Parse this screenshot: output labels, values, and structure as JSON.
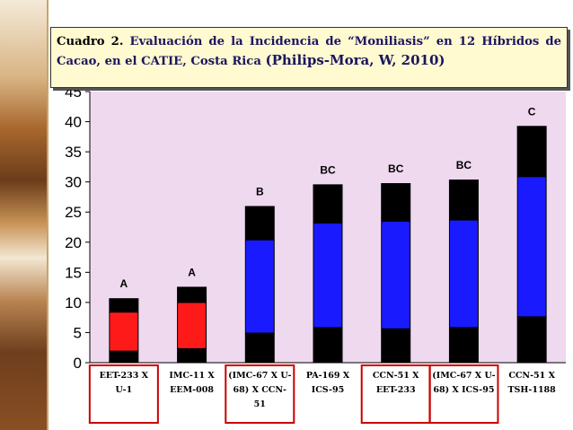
{
  "title": {
    "label": "Cuadro 2.",
    "text": "Evaluación de la Incidencia de “Moniliasis” en 12 Híbridos de Cacao, en el CATIE, Costa Rica",
    "citation": "(Philips-Mora, W, 2010)"
  },
  "colors": {
    "plot_bg": "#efd9ef",
    "stack_black": "#000000",
    "red": "#ff1a1a",
    "blue": "#1a1aff",
    "box_border": "#cc0000",
    "title_bg": "#fffad0",
    "title_text": "#1b1560"
  },
  "chart_data": {
    "type": "bar",
    "ylim": [
      0,
      45
    ],
    "yticks": [
      0,
      5,
      10,
      15,
      20,
      25,
      30,
      35,
      40,
      45
    ],
    "grid": false,
    "categories": [
      {
        "lines": [
          "EET-233 X",
          "U-1"
        ],
        "boxed": true
      },
      {
        "lines": [
          "IMC-11 X",
          "EEM-008"
        ],
        "boxed": false
      },
      {
        "lines": [
          "(IMC-67 X U-",
          "68) X CCN-",
          "51"
        ],
        "boxed": true
      },
      {
        "lines": [
          "PA-169 X",
          "ICS-95"
        ],
        "boxed": false
      },
      {
        "lines": [
          "CCN-51 X",
          "EET-233"
        ],
        "boxed": true
      },
      {
        "lines": [
          "(IMC-67 X U-",
          "68) X ICS-95"
        ],
        "boxed": true
      },
      {
        "lines": [
          "CCN-51 X",
          "TSH-1188"
        ],
        "boxed": false
      }
    ],
    "series": [
      {
        "bars": [
          {
            "total": 10.7,
            "inner_low": 2.0,
            "inner_high": 8.3,
            "inner_color": "red",
            "letter": "A"
          },
          {
            "total": 12.6,
            "inner_low": 2.4,
            "inner_high": 9.9,
            "inner_color": "red",
            "letter": "A"
          },
          {
            "total": 26.0,
            "inner_low": 5.0,
            "inner_high": 20.3,
            "inner_color": "blue",
            "letter": "B"
          },
          {
            "total": 29.6,
            "inner_low": 5.9,
            "inner_high": 23.1,
            "inner_color": "blue",
            "letter": "BC"
          },
          {
            "total": 29.8,
            "inner_low": 5.7,
            "inner_high": 23.4,
            "inner_color": "blue",
            "letter": "BC"
          },
          {
            "total": 30.4,
            "inner_low": 5.9,
            "inner_high": 23.6,
            "inner_color": "blue",
            "letter": "BC"
          },
          {
            "total": 39.3,
            "inner_low": 7.7,
            "inner_high": 30.8,
            "inner_color": "blue",
            "letter": "C"
          }
        ]
      }
    ]
  }
}
